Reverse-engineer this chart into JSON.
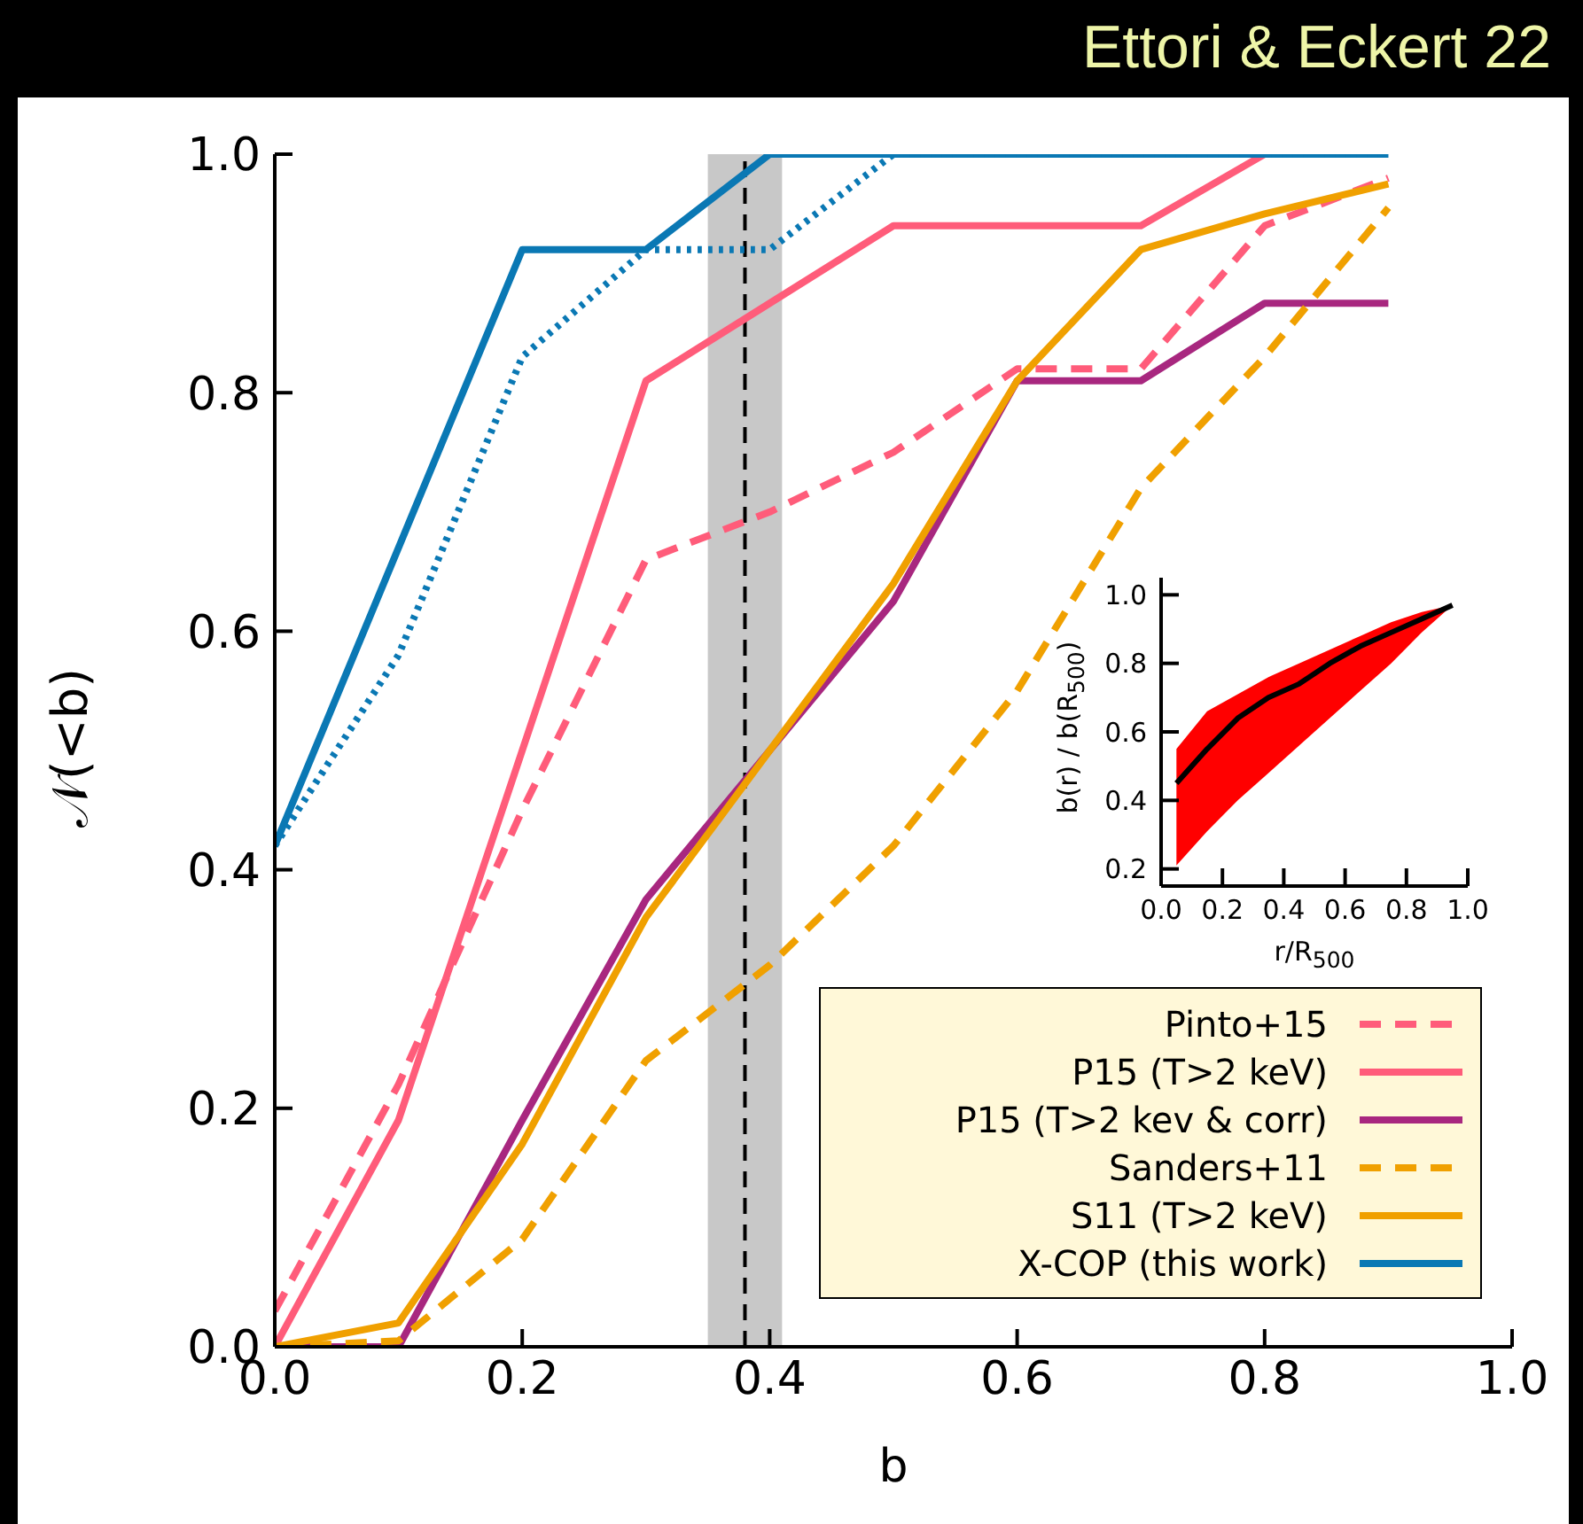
{
  "chart_data": [
    {
      "type": "line",
      "title": "Ettori & Eckert 22",
      "xlabel": "b",
      "ylabel": "𝒩(<b)",
      "x": [
        0,
        0.1,
        0.2,
        0.3,
        0.4,
        0.5,
        0.6,
        0.7,
        0.8,
        0.9
      ],
      "series": [
        {
          "name": "Pinto+15",
          "color": "#ff5c7a",
          "line_style": "dashed",
          "values": [
            0.03,
            0.22,
            0.45,
            0.66,
            0.7,
            0.75,
            0.82,
            0.82,
            0.94,
            0.98
          ]
        },
        {
          "name": "P15 (T>2 keV)",
          "color": "#ff5c7a",
          "line_style": "solid",
          "values": [
            0,
            0.19,
            0.5,
            0.81,
            0.875,
            0.94,
            0.94,
            0.94,
            1.0,
            null
          ]
        },
        {
          "name": "P15 (T>2 kev & corr)",
          "color": "#a8277f",
          "line_style": "solid",
          "values": [
            0,
            0,
            0.19,
            0.375,
            0.5,
            0.625,
            0.81,
            0.81,
            0.875,
            0.875
          ]
        },
        {
          "name": "Sanders+11",
          "color": "#f0a000",
          "line_style": "dashed",
          "values": [
            0,
            0.005,
            0.09,
            0.24,
            0.32,
            0.42,
            0.55,
            0.72,
            0.83,
            0.955
          ]
        },
        {
          "name": "S11 (T>2 keV)",
          "color": "#f0a000",
          "line_style": "solid",
          "values": [
            0,
            0.02,
            0.17,
            0.36,
            0.5,
            0.64,
            0.81,
            0.92,
            0.95,
            0.975
          ]
        },
        {
          "name": "X-COP (this work)",
          "color": "#0a78b4",
          "line_style": "solid",
          "values": [
            0.42,
            0.67,
            0.92,
            0.92,
            1.0,
            1.0,
            1.0,
            1.0,
            1.0,
            1.0
          ]
        },
        {
          "color": "#0a78b4",
          "line_style": "dotted",
          "values": [
            0.42,
            0.58,
            0.83,
            0.92,
            0.92,
            1.0,
            1.0,
            1.0,
            1.0,
            1.0
          ]
        }
      ],
      "xlim": [
        0,
        1
      ],
      "ylim": [
        0,
        1
      ],
      "xticks": [
        {
          "value": 0,
          "label": "0.0"
        },
        {
          "value": 0.2,
          "label": "0.2"
        },
        {
          "value": 0.4,
          "label": "0.4"
        },
        {
          "value": 0.6,
          "label": "0.6"
        },
        {
          "value": 0.8,
          "label": "0.8"
        },
        {
          "value": 1,
          "label": "1.0"
        }
      ],
      "yticks": [
        {
          "value": 0,
          "label": "0.0"
        },
        {
          "value": 0.2,
          "label": "0.2"
        },
        {
          "value": 0.4,
          "label": "0.4"
        },
        {
          "value": 0.6,
          "label": "0.6"
        },
        {
          "value": 0.8,
          "label": "0.8"
        },
        {
          "value": 1,
          "label": "1.0"
        }
      ],
      "ref_lines": [
        {
          "axis": "x",
          "value": 0.38,
          "color": "#000000",
          "line_style": "dashed"
        }
      ],
      "bands": [
        {
          "axis": "x",
          "from": 0.35,
          "to": 0.41,
          "color": "#c8c8c8"
        }
      ],
      "legend": "bottom right",
      "grid": false,
      "marker": "none"
    },
    {
      "type": "line",
      "xlabel": "r/R$_{500}$",
      "ylabel": "b(r) / b(R$_{500}$)",
      "x": [
        0.05,
        0.15,
        0.25,
        0.35,
        0.45,
        0.55,
        0.65,
        0.75,
        0.85,
        0.95
      ],
      "series": [
        {
          "color": "#000000",
          "line_style": "solid",
          "values": [
            0.45,
            0.55,
            0.64,
            0.7,
            0.74,
            0.8,
            0.85,
            0.89,
            0.93,
            0.97
          ],
          "lower": [
            0.21,
            0.31,
            0.4,
            0.48,
            0.56,
            0.64,
            0.72,
            0.8,
            0.89,
            0.97
          ],
          "upper": [
            0.55,
            0.66,
            0.71,
            0.76,
            0.8,
            0.84,
            0.88,
            0.92,
            0.95,
            0.97
          ]
        }
      ],
      "xlim": [
        0,
        1
      ],
      "ylim": [
        0.15,
        1.05
      ],
      "xticks": [
        {
          "value": 0,
          "label": "0.0"
        },
        {
          "value": 0.2,
          "label": "0.2"
        },
        {
          "value": 0.4,
          "label": "0.4"
        },
        {
          "value": 0.6,
          "label": "0.6"
        },
        {
          "value": 0.8,
          "label": "0.8"
        },
        {
          "value": 1,
          "label": "1.0"
        }
      ],
      "yticks": [
        0.2,
        0.4,
        0.6,
        0.8,
        {
          "value": 1,
          "label": "1.0"
        }
      ],
      "grid": false,
      "marker": "none"
    }
  ]
}
